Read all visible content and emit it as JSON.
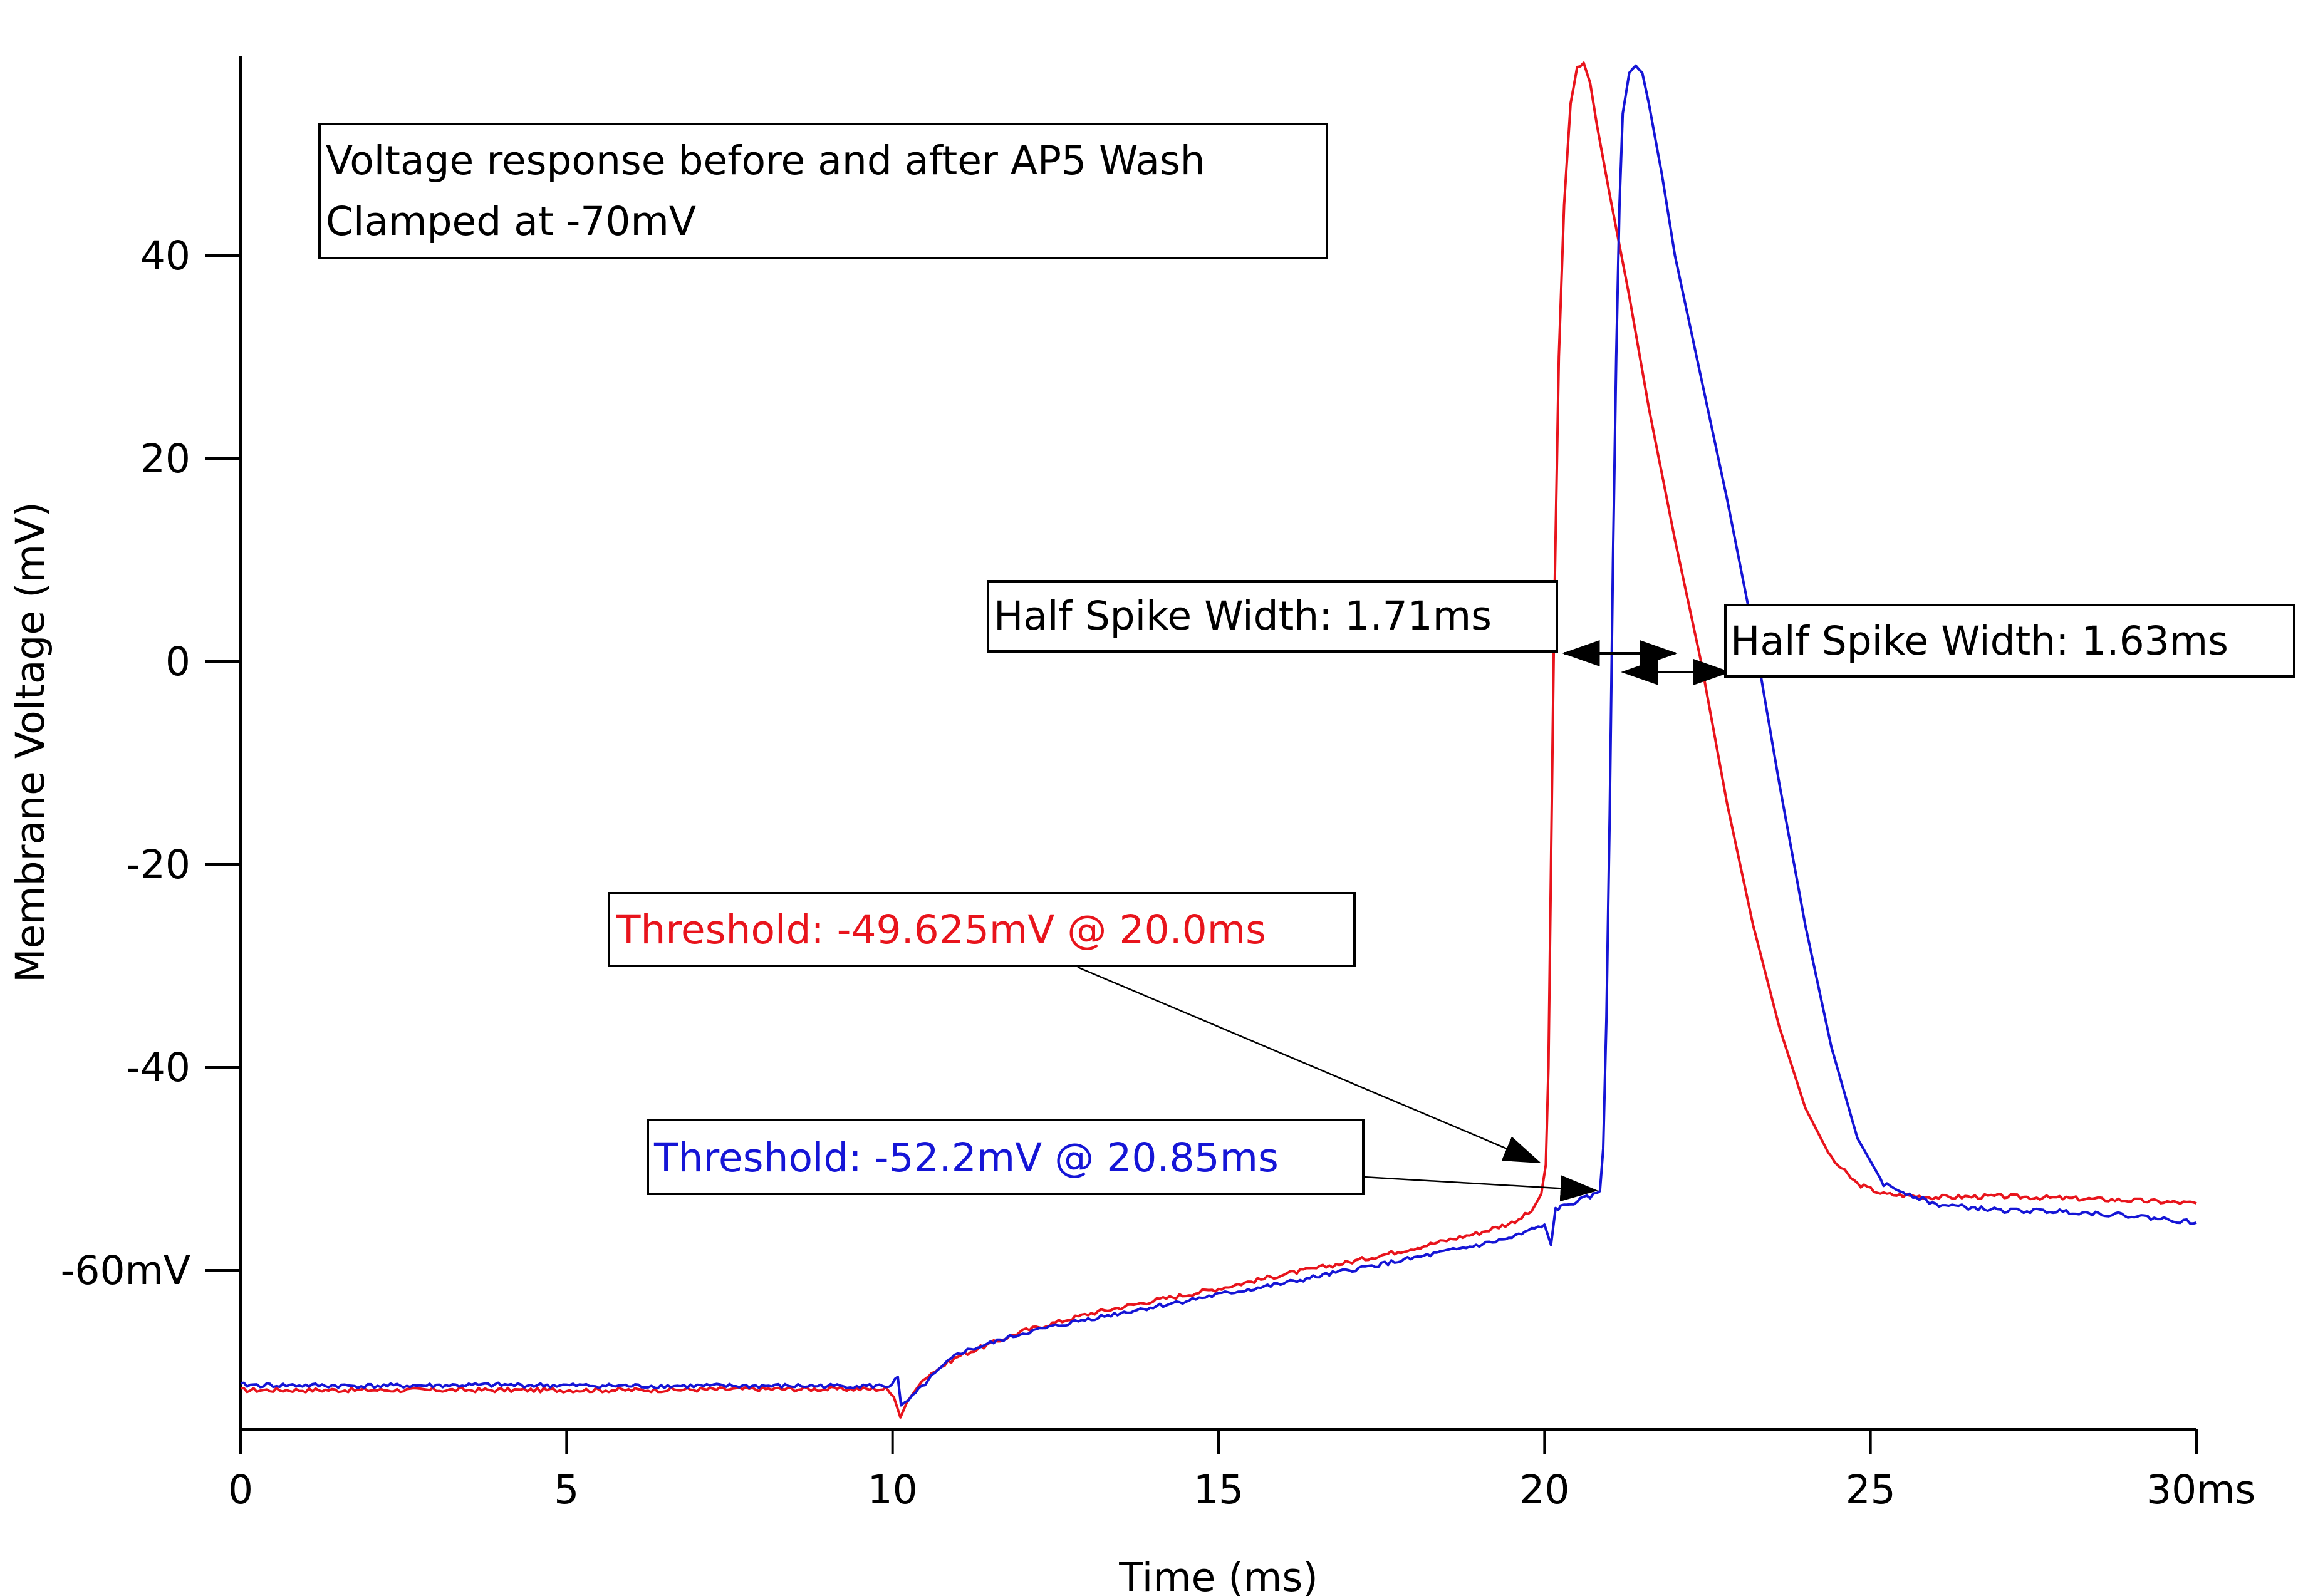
{
  "chart_data": {
    "type": "line",
    "title": "",
    "xlabel": "Time (ms)",
    "ylabel": "Membrane Voltage (mV)",
    "xlim": [
      0,
      30
    ],
    "ylim": [
      -75,
      59
    ],
    "x_ticks": [
      {
        "value": 0,
        "label": "0"
      },
      {
        "value": 5,
        "label": "5"
      },
      {
        "value": 10,
        "label": "10"
      },
      {
        "value": 15,
        "label": "15"
      },
      {
        "value": 20,
        "label": "20"
      },
      {
        "value": 25,
        "label": "25"
      },
      {
        "value": 30,
        "label": "30ms"
      }
    ],
    "y_ticks": [
      {
        "value": -60,
        "label": "-60mV"
      },
      {
        "value": -40,
        "label": "-40"
      },
      {
        "value": -20,
        "label": "-20"
      },
      {
        "value": 0,
        "label": "0"
      },
      {
        "value": 20,
        "label": "20"
      },
      {
        "value": 40,
        "label": "40"
      }
    ],
    "grid": false,
    "series": [
      {
        "color": "#e8141c",
        "x": [
          0,
          2,
          4,
          6,
          8,
          9.9,
          10.02,
          10.12,
          10.22,
          10.5,
          11,
          12,
          13,
          14,
          15,
          16,
          17,
          18,
          19,
          19.5,
          19.8,
          19.95,
          20.02,
          20.06,
          20.1,
          20.15,
          20.22,
          20.3,
          20.4,
          20.5,
          20.6,
          20.7,
          20.8,
          21.0,
          21.3,
          21.6,
          22.0,
          22.4,
          22.8,
          23.2,
          23.6,
          24.0,
          24.4,
          24.8,
          25.2,
          26,
          27,
          28,
          29,
          30
        ],
        "y": [
          -71.8,
          -71.8,
          -71.8,
          -71.8,
          -71.7,
          -71.7,
          -72.5,
          -74.5,
          -73,
          -70.5,
          -68.5,
          -66,
          -64.3,
          -63,
          -61.8,
          -60.4,
          -59.2,
          -57.8,
          -56.3,
          -55.3,
          -54.2,
          -52.5,
          -49.6,
          -40,
          -20,
          5,
          30,
          45,
          55,
          58.5,
          59,
          57,
          53,
          46,
          36,
          25,
          12,
          0,
          -14,
          -26,
          -36,
          -44,
          -49,
          -51.5,
          -52.5,
          -52.8,
          -52.7,
          -52.9,
          -53.1,
          -53.4
        ]
      },
      {
        "color": "#1515d6",
        "x": [
          0,
          2,
          4,
          6,
          8,
          9.95,
          10.08,
          10.13,
          10.3,
          10.6,
          11,
          12,
          13,
          14,
          15,
          16,
          17,
          18,
          19,
          19.5,
          20.0,
          20.1,
          20.17,
          20.25,
          20.5,
          20.8,
          20.85,
          20.9,
          20.95,
          21.0,
          21.05,
          21.1,
          21.15,
          21.2,
          21.3,
          21.4,
          21.5,
          21.6,
          21.8,
          22.0,
          22.4,
          22.8,
          23.2,
          23.6,
          24.0,
          24.4,
          24.8,
          25.2,
          26,
          27,
          28,
          29,
          30
        ],
        "y": [
          -71.3,
          -71.4,
          -71.3,
          -71.4,
          -71.4,
          -71.4,
          -70.5,
          -73.5,
          -72.5,
          -70.5,
          -68.2,
          -66.2,
          -64.8,
          -63.6,
          -62.4,
          -61.3,
          -60,
          -58.8,
          -57.5,
          -56.8,
          -55.5,
          -57.5,
          -54,
          -53.8,
          -53.2,
          -52.5,
          -52.2,
          -48,
          -35,
          -15,
          10,
          30,
          45,
          54,
          58,
          58.8,
          58,
          55,
          48,
          40,
          28,
          16,
          3,
          -12,
          -26,
          -38,
          -47,
          -51.5,
          -53.5,
          -54.1,
          -54.2,
          -54.6,
          -55.3
        ]
      }
    ],
    "annotations": {
      "legend_box": {
        "line1": "Voltage response before and after AP5 Wash",
        "line2": "Clamped at -70mV"
      },
      "half_width_red": {
        "text": "Half Spike Width: 1.71ms",
        "from_x": 20.3,
        "to_x": 22.01,
        "y": 0.8
      },
      "half_width_blue": {
        "text": "Half Spike Width: 1.63ms",
        "from_x": 21.2,
        "to_x": 22.83,
        "y": 1.3
      },
      "threshold_red": {
        "text": "Threshold: -49.625mV @ 20.0ms",
        "point_x": 20.0,
        "point_y": -49.625,
        "color": "#e8141c"
      },
      "threshold_blue": {
        "text": "Threshold: -52.2mV @ 20.85ms",
        "point_x": 20.85,
        "point_y": -52.2,
        "color": "#1515d6"
      }
    }
  }
}
